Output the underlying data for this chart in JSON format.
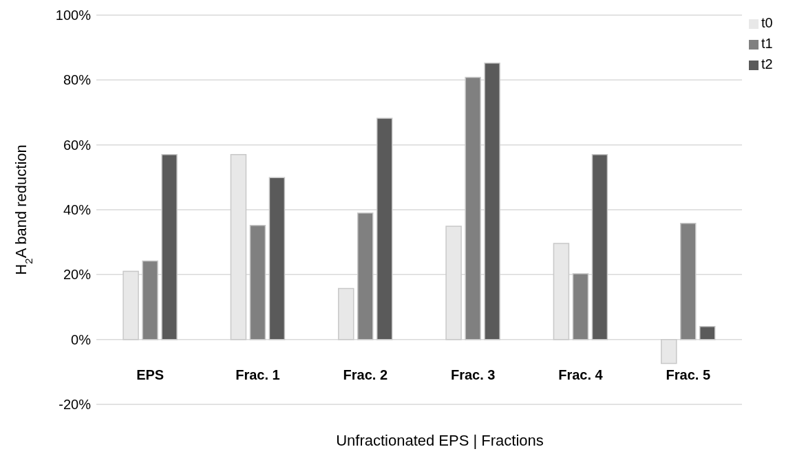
{
  "chart_data": {
    "type": "bar",
    "xlabel": "Unfractionated EPS | Fractions",
    "ylabel": "H$_{2}$A band reduction",
    "categories": [
      "EPS",
      "Frac. 1",
      "Frac. 2",
      "Frac. 3",
      "Frac. 4",
      "Frac. 5"
    ],
    "series": [
      {
        "name": "t0",
        "color": "#e8e8e8",
        "values": [
          21,
          57,
          15.7,
          34.9,
          29.6,
          -7.4
        ]
      },
      {
        "name": "t1",
        "color": "#808080",
        "values": [
          24.2,
          35.2,
          39,
          80.8,
          20.3,
          35.8
        ]
      },
      {
        "name": "t2",
        "color": "#5a5a5a",
        "values": [
          57,
          49.9,
          68.2,
          85.2,
          57,
          4
        ]
      }
    ],
    "ylim": [
      -20,
      100
    ],
    "yticks": [
      {
        "value": -20,
        "label": "-20%"
      },
      {
        "value": 0,
        "label": "0%"
      },
      {
        "value": 20,
        "label": "20%"
      },
      {
        "value": 40,
        "label": "40%"
      },
      {
        "value": 60,
        "label": "60%"
      },
      {
        "value": 80,
        "label": "80%"
      },
      {
        "value": 100,
        "label": "100%"
      }
    ],
    "grid": "y",
    "legend": "top right"
  }
}
